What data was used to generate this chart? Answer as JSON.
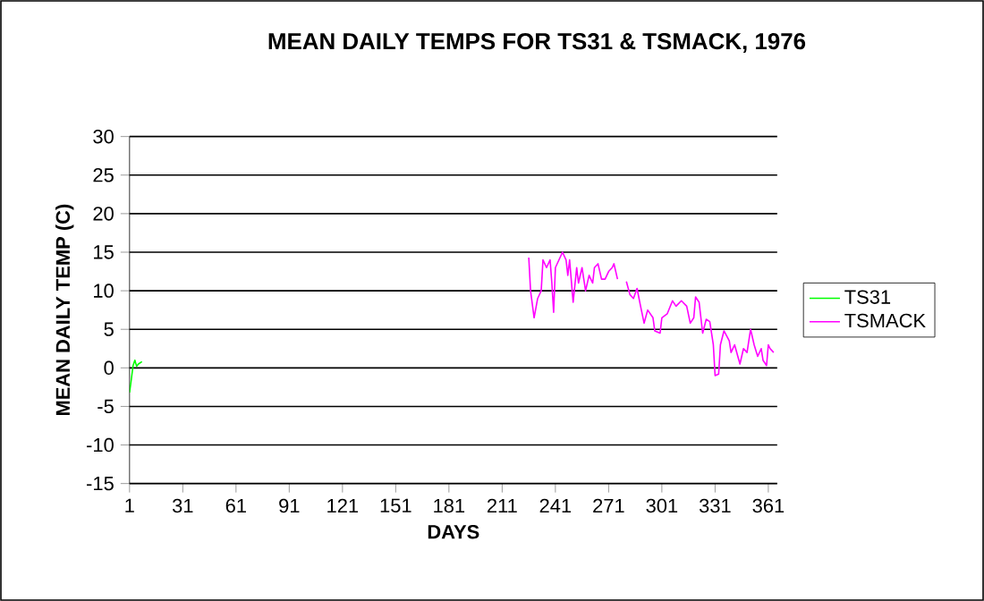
{
  "chart_data": {
    "type": "line",
    "title": "MEAN DAILY TEMPS FOR TS31 & TSMACK, 1976",
    "xlabel": "DAYS",
    "ylabel": "MEAN DAILY TEMP (C)",
    "xlim": [
      1,
      366
    ],
    "xticks": [
      1,
      31,
      61,
      91,
      121,
      151,
      181,
      211,
      241,
      271,
      301,
      331,
      361
    ],
    "ylim": [
      -15,
      30
    ],
    "yticks": [
      -15,
      -10,
      -5,
      0,
      5,
      10,
      15,
      20,
      25,
      30
    ],
    "grid": "y",
    "legend": "right",
    "marker": "none",
    "line_style": "solid",
    "series": [
      {
        "name": "TS31",
        "color": "#00ff00",
        "x": [
          1,
          2,
          3,
          4,
          5,
          6,
          8
        ],
        "values": [
          -3.2,
          -1.5,
          0.3,
          1,
          0.2,
          0.5,
          0.8
        ]
      },
      {
        "name": "TSMACK",
        "color": "#ff00ff",
        "x": [
          226,
          227,
          229,
          231,
          233,
          234,
          236,
          238,
          239,
          240,
          241,
          243,
          245,
          247,
          248,
          249,
          251,
          253,
          254,
          256,
          258,
          260,
          262,
          263,
          265,
          267,
          269,
          271,
          273,
          274,
          276,
          278,
          281,
          283,
          285,
          287,
          289,
          291,
          293,
          296,
          297,
          300,
          301,
          304,
          307,
          309,
          312,
          315,
          317,
          319,
          320,
          322,
          324,
          326,
          328,
          330,
          331,
          333,
          334,
          336,
          339,
          340,
          342,
          345,
          347,
          349,
          351,
          353,
          355,
          357,
          358,
          360,
          361,
          362,
          364
        ],
        "values": [
          14.3,
          10,
          6.5,
          9,
          10,
          14,
          13,
          14,
          11,
          7.2,
          13,
          14,
          15,
          14,
          12,
          14,
          8.5,
          13,
          11,
          13,
          10,
          12,
          11,
          13,
          13.5,
          11.5,
          11.5,
          12.5,
          13,
          13.5,
          11.5,
          null,
          11.2,
          9.5,
          9,
          10.3,
          8,
          5.8,
          7.5,
          6.5,
          4.8,
          4.5,
          6.5,
          7,
          8.7,
          8,
          8.7,
          8,
          5.8,
          6.5,
          9.2,
          8.5,
          4.5,
          6.3,
          6,
          3,
          -1,
          -0.8,
          3,
          4.8,
          3.5,
          2,
          3,
          0.5,
          2.5,
          2,
          5,
          3,
          1.5,
          2.5,
          1,
          0.3,
          3,
          2.5,
          2
        ]
      }
    ]
  }
}
